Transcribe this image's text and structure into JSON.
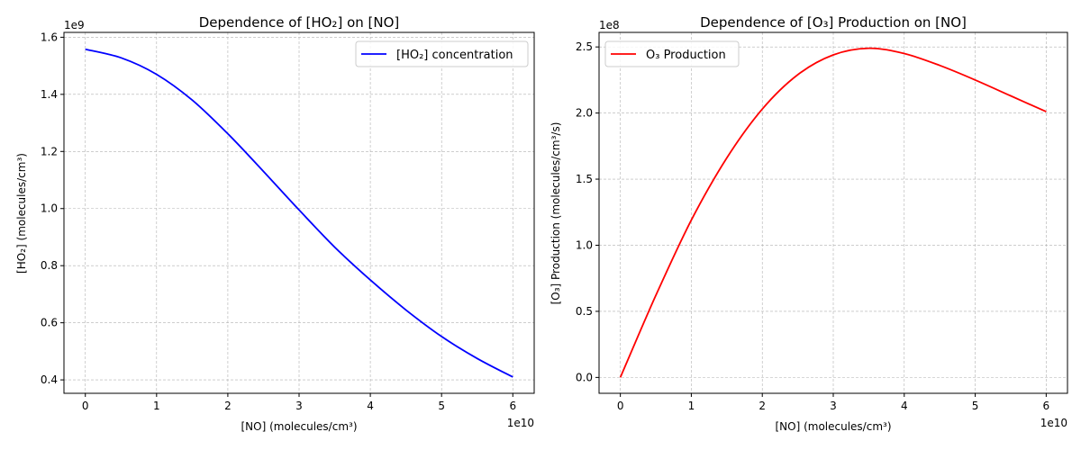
{
  "chart_data": [
    {
      "type": "line",
      "title": "Dependence of [HO₂] on [NO]",
      "xlabel": "[NO] (molecules/cm³)",
      "ylabel": "[HO₂] (molecules/cm³)",
      "x_offset_label": "1e10",
      "y_offset_label": "1e9",
      "xlim": [
        -0.3,
        6.3
      ],
      "ylim": [
        0.353,
        1.617
      ],
      "x_ticks": [
        0,
        1,
        2,
        3,
        4,
        5,
        6
      ],
      "x_tick_labels": [
        "0",
        "1",
        "2",
        "3",
        "4",
        "5",
        "6"
      ],
      "y_ticks": [
        0.4,
        0.6,
        0.8,
        1.0,
        1.2,
        1.4,
        1.6
      ],
      "y_tick_labels": [
        "0.4",
        "0.6",
        "0.8",
        "1.0",
        "1.2",
        "1.4",
        "1.6"
      ],
      "grid": true,
      "legend_position": "upper right",
      "series": [
        {
          "name": "[HO₂] concentration",
          "color": "#0000ff",
          "x": [
            0,
            0.5,
            1,
            1.5,
            2,
            2.5,
            3,
            3.5,
            4,
            4.5,
            5,
            5.5,
            6
          ],
          "y": [
            1.558,
            1.528,
            1.47,
            1.38,
            1.262,
            1.13,
            0.995,
            0.865,
            0.75,
            0.645,
            0.552,
            0.475,
            0.41
          ]
        }
      ]
    },
    {
      "type": "line",
      "title": "Dependence of [O₃] Production on [NO]",
      "xlabel": "[NO] (molecules/cm³)",
      "ylabel": "[O₃] Production (molecules/cm³/s)",
      "x_offset_label": "1e10",
      "y_offset_label": "1e8",
      "xlim": [
        -0.3,
        6.3
      ],
      "ylim": [
        -0.12,
        2.61
      ],
      "x_ticks": [
        0,
        1,
        2,
        3,
        4,
        5,
        6
      ],
      "x_tick_labels": [
        "0",
        "1",
        "2",
        "3",
        "4",
        "5",
        "6"
      ],
      "y_ticks": [
        0.0,
        0.5,
        1.0,
        1.5,
        2.0,
        2.5
      ],
      "y_tick_labels": [
        "0.0",
        "0.5",
        "1.0",
        "1.5",
        "2.0",
        "2.5"
      ],
      "grid": true,
      "legend_position": "upper left",
      "series": [
        {
          "name": "O₃ Production",
          "color": "#ff0000",
          "x": [
            0,
            0.5,
            1,
            1.5,
            2,
            2.5,
            3,
            3.5,
            4,
            4.5,
            5,
            5.5,
            6
          ],
          "y": [
            0.0,
            0.62,
            1.19,
            1.66,
            2.03,
            2.29,
            2.44,
            2.49,
            2.45,
            2.36,
            2.25,
            2.13,
            2.01
          ]
        }
      ]
    }
  ]
}
